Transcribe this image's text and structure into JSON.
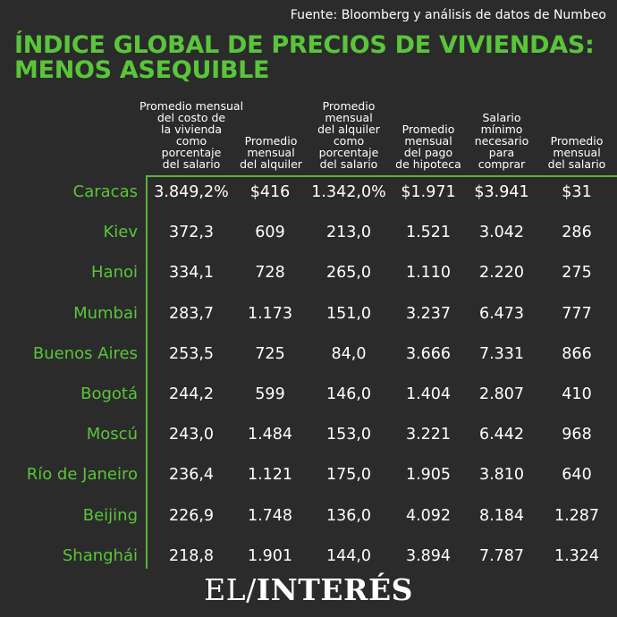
{
  "source": "Fuente: Bloomberg y análisis de datos de Numbeo",
  "title_lines": [
    "ÍNDICE GLOBAL DE PRECIOS DE VIVIENDAS:",
    "MENOS ASEQUIBLE"
  ],
  "columns": [
    [
      "Promedio mensual",
      "del costo de",
      "la vivienda",
      "como",
      "porcentaje",
      "del salario"
    ],
    [
      "Promedio",
      "mensual",
      "del alquiler"
    ],
    [
      "Promedio",
      "mensual",
      "del alquiler",
      "como",
      "porcentaje",
      "del salario"
    ],
    [
      "Promedio",
      "mensual",
      "del pago",
      "de hipoteca"
    ],
    [
      "Salario",
      "mínimo",
      "necesario",
      "para",
      "comprar"
    ],
    [
      "Promedio",
      "mensual",
      "del salario"
    ]
  ],
  "rows": [
    {
      "city": "Caracas",
      "values": [
        "3.849,2%",
        "$416",
        "1.342,0%",
        "$1.971",
        "$3.941",
        "$31"
      ]
    },
    {
      "city": "Kiev",
      "values": [
        "372,3",
        "609",
        "213,0",
        "1.521",
        "3.042",
        "286"
      ]
    },
    {
      "city": "Hanoi",
      "values": [
        "334,1",
        "728",
        "265,0",
        "1.110",
        "2.220",
        "275"
      ]
    },
    {
      "city": "Mumbai",
      "values": [
        "283,7",
        "1.173",
        "151,0",
        "3.237",
        "6.473",
        "777"
      ]
    },
    {
      "city": "Buenos Aires",
      "values": [
        "253,5",
        "725",
        "84,0",
        "3.666",
        "7.331",
        "866"
      ]
    },
    {
      "city": "Bogotá",
      "values": [
        "244,2",
        "599",
        "146,0",
        "1.404",
        "2.807",
        "410"
      ]
    },
    {
      "city": "Moscú",
      "values": [
        "243,0",
        "1.484",
        "153,0",
        "3.221",
        "6.442",
        "968"
      ]
    },
    {
      "city": "Río de Janeiro",
      "values": [
        "236,4",
        "1.121",
        "175,0",
        "1.905",
        "3.810",
        "640"
      ]
    },
    {
      "city": "Beijing",
      "values": [
        "226,9",
        "1.748",
        "136,0",
        "4.092",
        "8.184",
        "1.287"
      ]
    },
    {
      "city": "Shanghái",
      "values": [
        "218,8",
        "1.901",
        "144,0",
        "3.894",
        "7.787",
        "1.324"
      ]
    }
  ],
  "logo": {
    "left": "EL",
    "slash": "/",
    "right": "INTERÉS"
  },
  "colors": {
    "background": "#2b2b2b",
    "accent": "#5ac53a",
    "text": "#ffffff"
  },
  "chart_data": {
    "type": "table",
    "title": "ÍNDICE GLOBAL DE PRECIOS DE VIVIENDAS: MENOS ASEQUIBLE",
    "subtitle": "Fuente: Bloomberg y análisis de datos de Numbeo",
    "columns": [
      "Promedio mensual del costo de la vivienda como porcentaje del salario",
      "Promedio mensual del alquiler",
      "Promedio mensual del alquiler como porcentaje del salario",
      "Promedio mensual del pago de hipoteca",
      "Salario mínimo necesario para comprar",
      "Promedio mensual del salario"
    ],
    "rows": [
      "Caracas",
      "Kiev",
      "Hanoi",
      "Mumbai",
      "Buenos Aires",
      "Bogotá",
      "Moscú",
      "Río de Janeiro",
      "Beijing",
      "Shanghái"
    ],
    "values": [
      [
        "3.849,2%",
        "$416",
        "1.342,0%",
        "$1.971",
        "$3.941",
        "$31"
      ],
      [
        "372,3",
        "609",
        "213,0",
        "1.521",
        "3.042",
        "286"
      ],
      [
        "334,1",
        "728",
        "265,0",
        "1.110",
        "2.220",
        "275"
      ],
      [
        "283,7",
        "1.173",
        "151,0",
        "3.237",
        "6.473",
        "777"
      ],
      [
        "253,5",
        "725",
        "84,0",
        "3.666",
        "7.331",
        "866"
      ],
      [
        "244,2",
        "599",
        "146,0",
        "1.404",
        "2.807",
        "410"
      ],
      [
        "243,0",
        "1.484",
        "153,0",
        "3.221",
        "6.442",
        "968"
      ],
      [
        "236,4",
        "1.121",
        "175,0",
        "1.905",
        "3.810",
        "640"
      ],
      [
        "226,9",
        "1.748",
        "136,0",
        "4.092",
        "8.184",
        "1.287"
      ],
      [
        "218,8",
        "1.901",
        "144,0",
        "3.894",
        "7.787",
        "1.324"
      ]
    ]
  }
}
